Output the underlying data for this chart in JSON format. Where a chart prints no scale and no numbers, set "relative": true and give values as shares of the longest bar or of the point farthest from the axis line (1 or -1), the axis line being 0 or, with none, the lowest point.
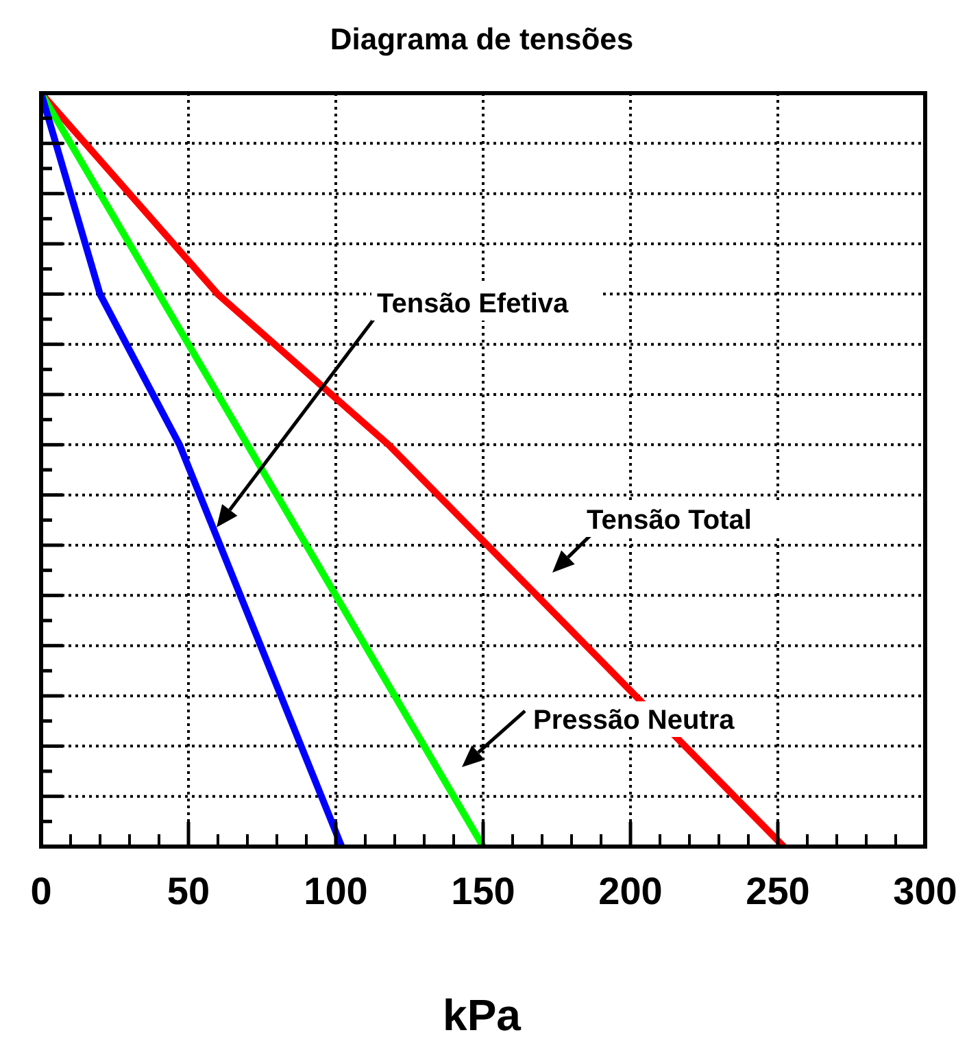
{
  "chart_data": {
    "type": "line",
    "title": "Diagrama de tensões",
    "xlabel": "kPa",
    "relative": true,
    "xlim": [
      0,
      300
    ],
    "xticks": [
      0,
      50,
      100,
      150,
      200,
      250,
      300
    ],
    "grid": true,
    "series": [
      {
        "color": "#ff0000",
        "x": [
          0,
          60,
          118,
          252
        ],
        "values": [
          1,
          0.733,
          0.533,
          0
        ]
      },
      {
        "color": "#00ff00",
        "x": [
          0,
          150
        ],
        "values": [
          1,
          0
        ]
      },
      {
        "color": "#0000ff",
        "x": [
          0,
          20,
          47,
          102
        ],
        "values": [
          1,
          0.733,
          0.533,
          0
        ]
      }
    ],
    "annotations": [
      "Tensão Efetiva",
      "Tensão Total",
      "Pressão Neutra"
    ]
  }
}
